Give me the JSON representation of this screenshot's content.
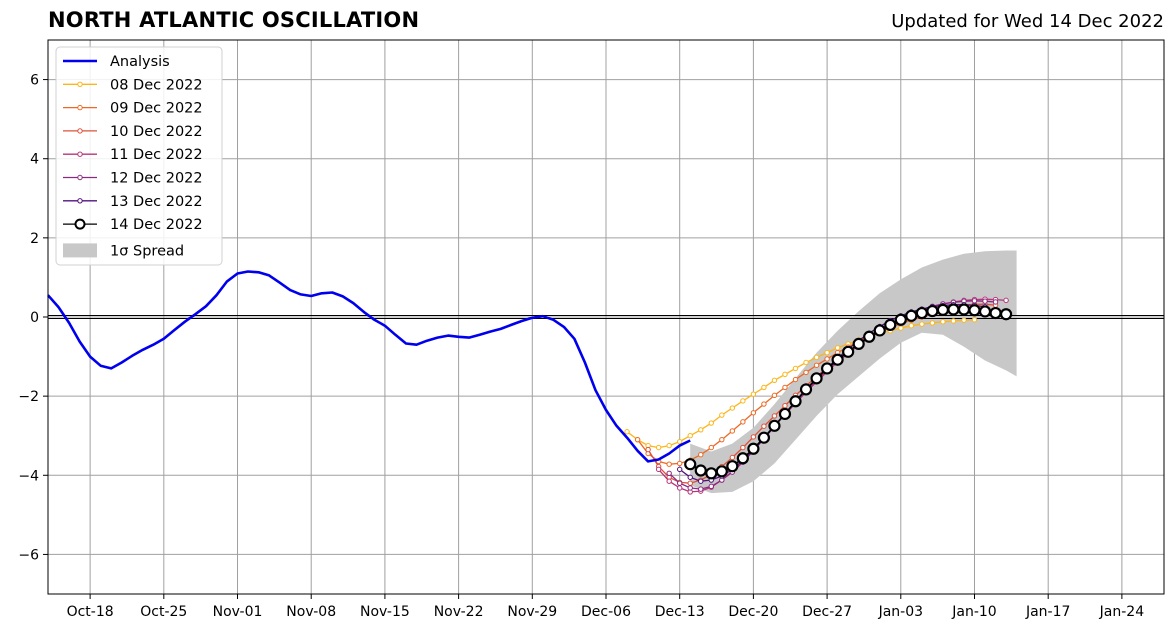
{
  "header": {
    "title": "NORTH ATLANTIC OSCILLATION",
    "subtitle": "Updated for Wed 14 Dec 2022"
  },
  "chart_data": {
    "type": "line",
    "title": "NORTH ATLANTIC OSCILLATION",
    "subtitle": "Updated for Wed 14 Dec 2022",
    "xlabel": "",
    "ylabel": "",
    "x_axis": {
      "type": "date",
      "range": [
        "2022-10-14",
        "2023-01-28"
      ],
      "tick_dates": [
        "2022-10-18",
        "2022-10-25",
        "2022-11-01",
        "2022-11-08",
        "2022-11-15",
        "2022-11-22",
        "2022-11-29",
        "2022-12-06",
        "2022-12-13",
        "2022-12-20",
        "2022-12-27",
        "2023-01-03",
        "2023-01-10",
        "2023-01-17",
        "2023-01-24"
      ],
      "tick_labels": [
        "Oct-18",
        "Oct-25",
        "Nov-01",
        "Nov-08",
        "Nov-15",
        "Nov-22",
        "Nov-29",
        "Dec-06",
        "Dec-13",
        "Dec-20",
        "Dec-27",
        "Jan-03",
        "Jan-10",
        "Jan-17",
        "Jan-24"
      ]
    },
    "y_axis": {
      "range": [
        -7,
        7
      ],
      "ticks": [
        -6,
        -4,
        -2,
        0,
        2,
        4,
        6
      ],
      "tick_labels": [
        "−6",
        "−4",
        "−2",
        "0",
        "2",
        "4",
        "6"
      ]
    },
    "grid": true,
    "legend_position": "top-left",
    "colors": {
      "analysis": "#0000ee",
      "spread": "#c8c8c8",
      "zero_line": "#000000",
      "grid": "#a0a0a0"
    },
    "analysis": {
      "name": "Analysis",
      "color": "#0000ee",
      "x": [
        "2022-10-14",
        "2022-10-15",
        "2022-10-16",
        "2022-10-17",
        "2022-10-18",
        "2022-10-19",
        "2022-10-20",
        "2022-10-21",
        "2022-10-22",
        "2022-10-23",
        "2022-10-24",
        "2022-10-25",
        "2022-10-26",
        "2022-10-27",
        "2022-10-28",
        "2022-10-29",
        "2022-10-30",
        "2022-10-31",
        "2022-11-01",
        "2022-11-02",
        "2022-11-03",
        "2022-11-04",
        "2022-11-05",
        "2022-11-06",
        "2022-11-07",
        "2022-11-08",
        "2022-11-09",
        "2022-11-10",
        "2022-11-11",
        "2022-11-12",
        "2022-11-13",
        "2022-11-14",
        "2022-11-15",
        "2022-11-16",
        "2022-11-17",
        "2022-11-18",
        "2022-11-19",
        "2022-11-20",
        "2022-11-21",
        "2022-11-22",
        "2022-11-23",
        "2022-11-24",
        "2022-11-25",
        "2022-11-26",
        "2022-11-27",
        "2022-11-28",
        "2022-11-29",
        "2022-11-30",
        "2022-12-01",
        "2022-12-02",
        "2022-12-03",
        "2022-12-04",
        "2022-12-05",
        "2022-12-06",
        "2022-12-07",
        "2022-12-08",
        "2022-12-09",
        "2022-12-10",
        "2022-12-11",
        "2022-12-12",
        "2022-12-13",
        "2022-12-14"
      ],
      "y": [
        0.55,
        0.25,
        -0.15,
        -0.62,
        -1.0,
        -1.23,
        -1.3,
        -1.15,
        -0.98,
        -0.83,
        -0.7,
        -0.55,
        -0.33,
        -0.12,
        0.07,
        0.27,
        0.55,
        0.9,
        1.1,
        1.15,
        1.13,
        1.05,
        0.87,
        0.68,
        0.57,
        0.53,
        0.6,
        0.62,
        0.52,
        0.35,
        0.13,
        -0.07,
        -0.22,
        -0.45,
        -0.67,
        -0.7,
        -0.6,
        -0.52,
        -0.47,
        -0.5,
        -0.52,
        -0.45,
        -0.37,
        -0.3,
        -0.2,
        -0.1,
        -0.02,
        0.02,
        -0.07,
        -0.25,
        -0.55,
        -1.15,
        -1.85,
        -2.35,
        -2.75,
        -3.05,
        -3.38,
        -3.65,
        -3.6,
        -3.45,
        -3.25,
        -3.12
      ]
    },
    "series": [
      {
        "name": "08 Dec 2022",
        "color": "#fbb61a",
        "start": "2022-12-08",
        "values": [
          -2.9,
          -3.1,
          -3.25,
          -3.3,
          -3.25,
          -3.15,
          -3.0,
          -2.85,
          -2.68,
          -2.48,
          -2.3,
          -2.12,
          -1.95,
          -1.78,
          -1.6,
          -1.45,
          -1.3,
          -1.15,
          -1.02,
          -0.9,
          -0.78,
          -0.68,
          -0.58,
          -0.5,
          -0.42,
          -0.35,
          -0.28,
          -0.22,
          -0.18,
          -0.15,
          -0.12,
          -0.1,
          -0.08,
          -0.07
        ]
      },
      {
        "name": "09 Dec 2022",
        "color": "#ed6925",
        "start": "2022-12-09",
        "values": [
          -3.1,
          -3.45,
          -3.65,
          -3.72,
          -3.7,
          -3.62,
          -3.48,
          -3.3,
          -3.1,
          -2.88,
          -2.65,
          -2.42,
          -2.2,
          -1.98,
          -1.78,
          -1.58,
          -1.4,
          -1.22,
          -1.06,
          -0.9,
          -0.76,
          -0.62,
          -0.5,
          -0.38,
          -0.27,
          -0.17,
          -0.08,
          0.0,
          0.07,
          0.12,
          0.15,
          0.17,
          0.18,
          0.18
        ]
      },
      {
        "name": "10 Dec 2022",
        "color": "#dd513a",
        "start": "2022-12-10",
        "values": [
          -3.35,
          -3.78,
          -4.05,
          -4.18,
          -4.2,
          -4.12,
          -3.98,
          -3.78,
          -3.55,
          -3.3,
          -3.03,
          -2.76,
          -2.5,
          -2.24,
          -1.98,
          -1.74,
          -1.5,
          -1.28,
          -1.08,
          -0.88,
          -0.7,
          -0.54,
          -0.38,
          -0.24,
          -0.1,
          0.0,
          0.1,
          0.18,
          0.24,
          0.28,
          0.3,
          0.32,
          0.32,
          0.3
        ]
      },
      {
        "name": "11 Dec 2022",
        "color": "#b63679",
        "start": "2022-12-11",
        "values": [
          -3.85,
          -4.15,
          -4.32,
          -4.42,
          -4.4,
          -4.3,
          -4.12,
          -3.9,
          -3.64,
          -3.36,
          -3.06,
          -2.76,
          -2.47,
          -2.18,
          -1.9,
          -1.64,
          -1.38,
          -1.14,
          -0.92,
          -0.72,
          -0.53,
          -0.36,
          -0.2,
          -0.06,
          0.06,
          0.17,
          0.26,
          0.33,
          0.38,
          0.42,
          0.44,
          0.45,
          0.44,
          0.42
        ]
      },
      {
        "name": "12 Dec 2022",
        "color": "#8c2981",
        "start": "2022-12-12",
        "values": [
          -3.95,
          -4.2,
          -4.32,
          -4.35,
          -4.28,
          -4.12,
          -3.92,
          -3.67,
          -3.38,
          -3.08,
          -2.77,
          -2.46,
          -2.16,
          -1.87,
          -1.6,
          -1.34,
          -1.1,
          -0.88,
          -0.68,
          -0.49,
          -0.32,
          -0.17,
          -0.03,
          0.09,
          0.19,
          0.27,
          0.33,
          0.37,
          0.4,
          0.41,
          0.4,
          0.38
        ]
      },
      {
        "name": "13 Dec 2022",
        "color": "#51127c",
        "start": "2022-12-13",
        "values": [
          -3.85,
          -4.05,
          -4.15,
          -4.12,
          -4.02,
          -3.85,
          -3.62,
          -3.36,
          -3.07,
          -2.76,
          -2.45,
          -2.14,
          -1.84,
          -1.56,
          -1.29,
          -1.04,
          -0.81,
          -0.6,
          -0.41,
          -0.24,
          -0.09,
          0.03,
          0.13,
          0.2,
          0.26,
          0.29,
          0.31,
          0.31,
          0.29,
          0.26
        ]
      },
      {
        "name": "14 Dec 2022",
        "color": "#000000",
        "marker": "open-circle",
        "start": "2022-12-14",
        "values": [
          -3.72,
          -3.88,
          -3.95,
          -3.9,
          -3.77,
          -3.57,
          -3.33,
          -3.05,
          -2.75,
          -2.45,
          -2.13,
          -1.83,
          -1.55,
          -1.3,
          -1.08,
          -0.88,
          -0.68,
          -0.5,
          -0.34,
          -0.2,
          -0.07,
          0.03,
          0.1,
          0.15,
          0.18,
          0.19,
          0.19,
          0.17,
          0.14,
          0.1,
          0.07
        ]
      }
    ],
    "spread": {
      "name": "1σ Spread",
      "color": "#c8c8c8",
      "x": [
        "2022-12-14",
        "2022-12-16",
        "2022-12-18",
        "2022-12-20",
        "2022-12-22",
        "2022-12-24",
        "2022-12-26",
        "2022-12-28",
        "2022-12-30",
        "2023-01-01",
        "2023-01-03",
        "2023-01-05",
        "2023-01-07",
        "2023-01-09",
        "2023-01-11",
        "2023-01-13",
        "2023-01-14"
      ],
      "upper": [
        -3.2,
        -3.4,
        -3.2,
        -2.8,
        -2.2,
        -1.55,
        -0.9,
        -0.35,
        0.15,
        0.6,
        0.95,
        1.25,
        1.45,
        1.6,
        1.66,
        1.68,
        1.68
      ],
      "lower": [
        -4.25,
        -4.45,
        -4.42,
        -4.15,
        -3.7,
        -3.1,
        -2.5,
        -1.95,
        -1.5,
        -1.05,
        -0.65,
        -0.4,
        -0.45,
        -0.75,
        -1.1,
        -1.35,
        -1.5
      ]
    }
  }
}
